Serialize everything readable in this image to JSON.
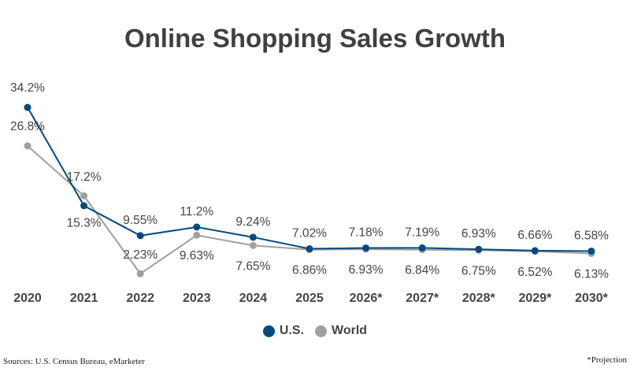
{
  "chart_data": {
    "type": "line",
    "title": "Online Shopping Sales Growth",
    "categories": [
      "2020",
      "2021",
      "2022",
      "2023",
      "2024",
      "2025",
      "2026*",
      "2027*",
      "2028*",
      "2029*",
      "2030*"
    ],
    "series": [
      {
        "name": "U.S.",
        "color": "#004a80",
        "values": [
          34.2,
          15.3,
          9.55,
          11.2,
          9.24,
          7.02,
          7.18,
          7.19,
          6.93,
          6.66,
          6.58
        ],
        "labels": [
          "34.2%",
          "15.3%",
          "9.55%",
          "11.2%",
          "9.24%",
          "7.02%",
          "7.18%",
          "7.19%",
          "6.93%",
          "6.66%",
          "6.58%"
        ]
      },
      {
        "name": "World",
        "color": "#a0a0a0",
        "values": [
          26.8,
          17.2,
          2.23,
          9.63,
          7.65,
          6.86,
          6.93,
          6.84,
          6.75,
          6.52,
          6.13
        ],
        "labels": [
          "26.8%",
          "17.2%",
          "2.23%",
          "9.63%",
          "7.65%",
          "6.86%",
          "6.93%",
          "6.84%",
          "6.75%",
          "6.52%",
          "6.13%"
        ]
      }
    ],
    "xlabel": "",
    "ylabel": "",
    "grid": false,
    "legend": "bottom"
  },
  "footer": {
    "source": "Sources: U.S. Census Bureau, eMarketer",
    "note": "*Projection"
  }
}
